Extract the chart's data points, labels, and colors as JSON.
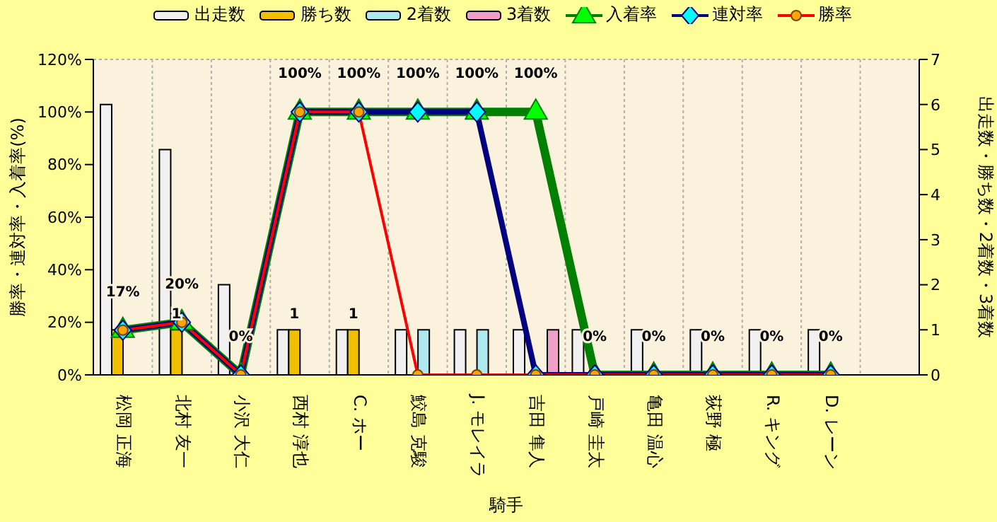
{
  "chart_data": {
    "type": "bar",
    "xlabel": "騎手",
    "ylabel": "勝率・連対率・入着率(%)",
    "y2label": "出走数・勝ち数・2着数・3着数",
    "categories": [
      "松岡 正海",
      "北村 友一",
      "小沢 大仁",
      "西村 淳也",
      "C. ホー",
      "鮫島 克駿",
      "J. モレイラ",
      "吉田 隼人",
      "戸崎 圭太",
      "亀田 温心",
      "荻野 極",
      "R. キング",
      "D. レーン",
      null
    ],
    "series": [
      {
        "name": "出走数",
        "type": "bar",
        "axis": "y2",
        "color": "#f0f0f0",
        "values": [
          6,
          5,
          2,
          1,
          1,
          1,
          1,
          1,
          1,
          1,
          1,
          1,
          1,
          null
        ]
      },
      {
        "name": "勝ち数",
        "type": "bar",
        "axis": "y2",
        "color": "#f0c000",
        "values": [
          1,
          1,
          0,
          1,
          1,
          0,
          0,
          0,
          0,
          0,
          0,
          0,
          0,
          null
        ],
        "value_labels": [
          null,
          "1",
          null,
          "1",
          "1",
          null,
          null,
          null,
          null,
          null,
          null,
          null,
          null,
          null
        ]
      },
      {
        "name": "2着数",
        "type": "bar",
        "axis": "y2",
        "color": "#b0e8f0",
        "values": [
          0,
          0,
          0,
          0,
          0,
          1,
          1,
          0,
          0,
          0,
          0,
          0,
          0,
          null
        ]
      },
      {
        "name": "3着数",
        "type": "bar",
        "axis": "y2",
        "color": "#f0a0c8",
        "values": [
          0,
          0,
          0,
          0,
          0,
          0,
          0,
          1,
          0,
          0,
          0,
          0,
          0,
          null
        ]
      },
      {
        "name": "入着率",
        "type": "line",
        "axis": "y",
        "color": "#008000",
        "marker": "triangle",
        "values": [
          17,
          20,
          0,
          100,
          100,
          100,
          100,
          100,
          0,
          0,
          0,
          0,
          0,
          null
        ],
        "value_labels": [
          "17%",
          "20%",
          "0%",
          "100%",
          "100%",
          "100%",
          "100%",
          "100%",
          "0%",
          "0%",
          "0%",
          "0%",
          "0%",
          null
        ]
      },
      {
        "name": "連対率",
        "type": "line",
        "axis": "y",
        "color": "#000080",
        "marker": "diamond",
        "values": [
          17,
          20,
          0,
          100,
          100,
          100,
          100,
          0,
          0,
          0,
          0,
          0,
          0,
          null
        ]
      },
      {
        "name": "勝率",
        "type": "line",
        "axis": "y",
        "color": "#ff0000",
        "marker": "circle",
        "values": [
          17,
          20,
          0,
          100,
          100,
          0,
          0,
          0,
          0,
          0,
          0,
          0,
          0,
          null
        ]
      }
    ],
    "ylim": [
      0,
      120
    ],
    "yticks": [
      {
        "value": 0,
        "label": "0%"
      },
      {
        "value": 20,
        "label": "20%"
      },
      {
        "value": 40,
        "label": "40%"
      },
      {
        "value": 60,
        "label": "60%"
      },
      {
        "value": 80,
        "label": "80%"
      },
      {
        "value": 100,
        "label": "100%"
      },
      {
        "value": 120,
        "label": "120%"
      }
    ],
    "y2lim": [
      0,
      7
    ],
    "y2ticks": [
      0,
      1,
      2,
      3,
      4,
      5,
      6,
      7
    ],
    "grid": true,
    "legend": "top"
  }
}
